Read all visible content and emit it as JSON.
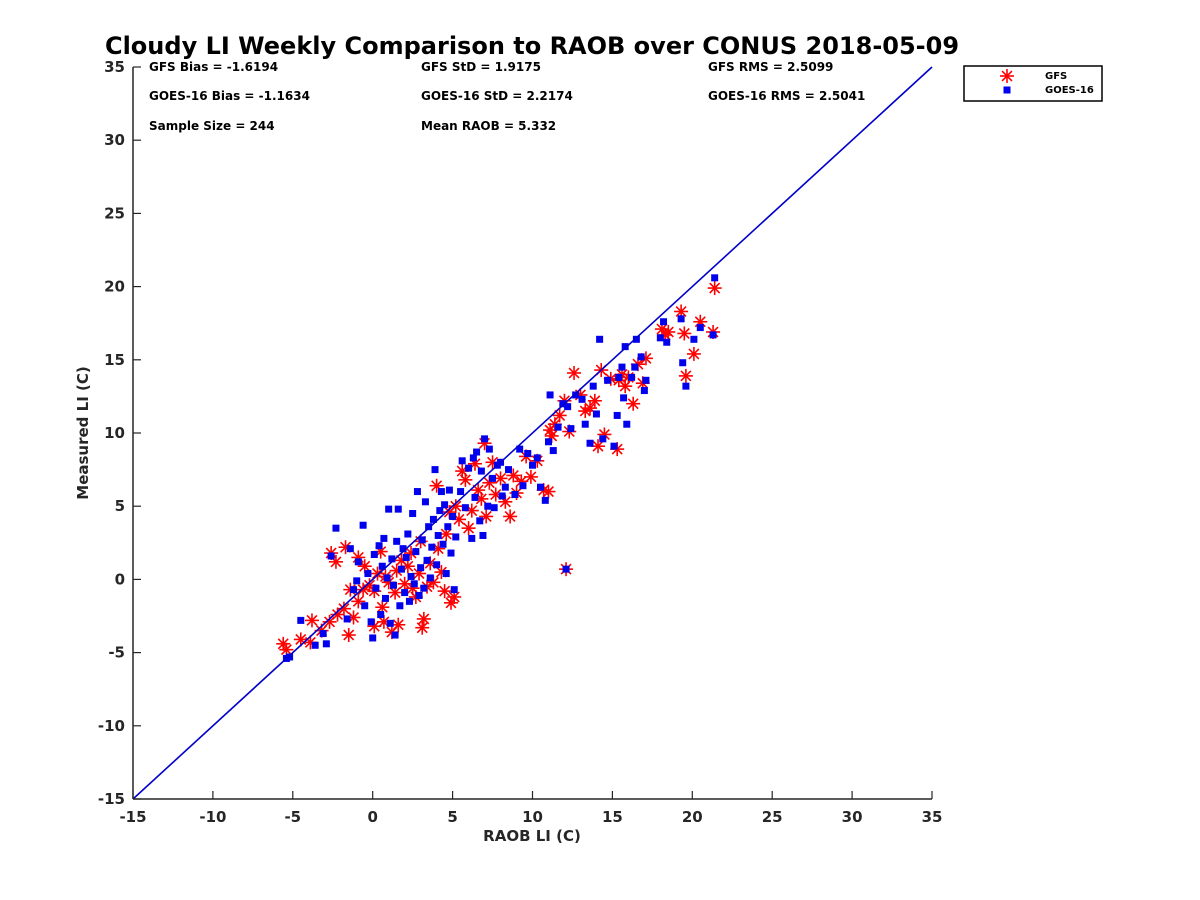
{
  "chart_data": {
    "type": "scatter",
    "title": "Cloudy LI Weekly Comparison to RAOB over CONUS 2018-05-09",
    "xlabel": "RAOB LI (C)",
    "ylabel": "Measured LI (C)",
    "xlim": [
      -15,
      35
    ],
    "ylim": [
      -15,
      35
    ],
    "xticks": [
      -15,
      -10,
      -5,
      0,
      5,
      10,
      15,
      20,
      25,
      30,
      35
    ],
    "yticks": [
      -15,
      -10,
      -5,
      0,
      5,
      10,
      15,
      20,
      25,
      30,
      35
    ],
    "grid": false,
    "legend_position": "top-right-outside",
    "reference_line": {
      "from": [
        -15,
        -15
      ],
      "to": [
        35,
        35
      ],
      "color": "#0000cc"
    },
    "stats": [
      {
        "label": "GFS Bias = -1.6194"
      },
      {
        "label": "GFS StD = 1.9175"
      },
      {
        "label": "GFS RMS = 2.5099"
      },
      {
        "label": "GOES-16 Bias = -1.1634"
      },
      {
        "label": "GOES-16 StD = 2.2174"
      },
      {
        "label": "GOES-16 RMS = 2.5041"
      },
      {
        "label": "Sample Size = 244"
      },
      {
        "label": "Mean RAOB = 5.332"
      }
    ],
    "series": [
      {
        "name": "GFS",
        "marker": "asterisk",
        "color": "#ff0000",
        "points": [
          [
            -5.6,
            -4.4
          ],
          [
            -5.4,
            -4.8
          ],
          [
            -4.5,
            -4.1
          ],
          [
            -3.9,
            -4.3
          ],
          [
            -3.8,
            -2.8
          ],
          [
            -3.2,
            -3.5
          ],
          [
            -2.7,
            -2.9
          ],
          [
            -2.2,
            -2.4
          ],
          [
            -1.8,
            -2.0
          ],
          [
            -1.5,
            -3.8
          ],
          [
            -1.2,
            -2.6
          ],
          [
            -0.9,
            -1.5
          ],
          [
            -0.6,
            -0.7
          ],
          [
            -1.4,
            -0.7
          ],
          [
            -2.6,
            1.8
          ],
          [
            -2.3,
            1.2
          ],
          [
            -1.7,
            2.2
          ],
          [
            -0.9,
            1.5
          ],
          [
            -0.5,
            0.9
          ],
          [
            -0.2,
            -0.4
          ],
          [
            0.1,
            -3.2
          ],
          [
            0.1,
            -0.8
          ],
          [
            0.3,
            0.4
          ],
          [
            0.5,
            1.9
          ],
          [
            0.6,
            -1.9
          ],
          [
            0.7,
            -2.9
          ],
          [
            0.8,
            0.2
          ],
          [
            1.0,
            -0.2
          ],
          [
            1.2,
            -3.6
          ],
          [
            1.4,
            -0.9
          ],
          [
            1.5,
            0.6
          ],
          [
            1.6,
            -3.1
          ],
          [
            1.8,
            1.3
          ],
          [
            2.0,
            -0.3
          ],
          [
            2.2,
            0.9
          ],
          [
            2.4,
            1.8
          ],
          [
            2.5,
            -0.6
          ],
          [
            2.7,
            -1.2
          ],
          [
            2.9,
            0.4
          ],
          [
            3.0,
            2.6
          ],
          [
            3.1,
            -3.3
          ],
          [
            3.2,
            -2.7
          ],
          [
            3.4,
            -0.5
          ],
          [
            3.6,
            1.1
          ],
          [
            3.8,
            -0.2
          ],
          [
            4.0,
            6.4
          ],
          [
            4.1,
            2.1
          ],
          [
            4.3,
            0.5
          ],
          [
            4.5,
            -0.8
          ],
          [
            4.6,
            3.1
          ],
          [
            4.8,
            4.6
          ],
          [
            4.9,
            -1.6
          ],
          [
            5.1,
            -1.2
          ],
          [
            5.2,
            5.0
          ],
          [
            5.4,
            4.1
          ],
          [
            5.6,
            7.4
          ],
          [
            5.8,
            6.8
          ],
          [
            6.0,
            3.5
          ],
          [
            6.2,
            4.7
          ],
          [
            6.4,
            7.9
          ],
          [
            6.6,
            6.1
          ],
          [
            6.8,
            5.5
          ],
          [
            7.0,
            9.3
          ],
          [
            7.1,
            4.3
          ],
          [
            7.3,
            6.6
          ],
          [
            7.5,
            8.0
          ],
          [
            7.7,
            5.8
          ],
          [
            8.0,
            6.9
          ],
          [
            8.3,
            5.3
          ],
          [
            8.6,
            4.3
          ],
          [
            8.8,
            7.1
          ],
          [
            9.0,
            5.9
          ],
          [
            9.3,
            6.7
          ],
          [
            9.6,
            8.4
          ],
          [
            9.9,
            7.0
          ],
          [
            10.3,
            8.1
          ],
          [
            10.7,
            6.1
          ],
          [
            11.0,
            6.0
          ],
          [
            11.1,
            10.2
          ],
          [
            11.2,
            9.8
          ],
          [
            11.4,
            10.6
          ],
          [
            11.7,
            11.2
          ],
          [
            12.0,
            12.2
          ],
          [
            12.1,
            0.7
          ],
          [
            12.3,
            10.1
          ],
          [
            12.6,
            14.1
          ],
          [
            13.0,
            12.6
          ],
          [
            13.3,
            11.5
          ],
          [
            13.6,
            11.7
          ],
          [
            13.9,
            12.2
          ],
          [
            14.1,
            9.1
          ],
          [
            14.3,
            14.3
          ],
          [
            14.5,
            9.9
          ],
          [
            14.9,
            13.7
          ],
          [
            15.3,
            8.9
          ],
          [
            15.4,
            13.6
          ],
          [
            15.6,
            14.0
          ],
          [
            15.8,
            13.2
          ],
          [
            16.0,
            13.8
          ],
          [
            16.3,
            12.0
          ],
          [
            16.6,
            14.7
          ],
          [
            16.9,
            13.4
          ],
          [
            17.1,
            15.1
          ],
          [
            18.1,
            17.1
          ],
          [
            18.3,
            16.7
          ],
          [
            18.5,
            16.9
          ],
          [
            19.3,
            18.3
          ],
          [
            19.5,
            16.8
          ],
          [
            19.6,
            13.9
          ],
          [
            20.1,
            15.4
          ],
          [
            20.5,
            17.6
          ],
          [
            21.3,
            16.9
          ],
          [
            21.4,
            19.9
          ]
        ]
      },
      {
        "name": "GOES-16",
        "marker": "square",
        "color": "#0000ee",
        "points": [
          [
            -5.4,
            -5.4
          ],
          [
            -5.2,
            -5.3
          ],
          [
            -4.5,
            -2.8
          ],
          [
            -3.6,
            -4.5
          ],
          [
            -3.1,
            -3.7
          ],
          [
            -2.9,
            -4.4
          ],
          [
            -2.6,
            1.6
          ],
          [
            -2.3,
            3.5
          ],
          [
            -1.6,
            -2.7
          ],
          [
            -1.4,
            2.1
          ],
          [
            -1.2,
            -0.7
          ],
          [
            -1.0,
            -0.1
          ],
          [
            -0.9,
            1.2
          ],
          [
            -0.6,
            3.7
          ],
          [
            -0.5,
            -1.8
          ],
          [
            -0.3,
            0.4
          ],
          [
            -0.1,
            -2.9
          ],
          [
            0.0,
            -4.0
          ],
          [
            0.1,
            1.7
          ],
          [
            0.2,
            -0.6
          ],
          [
            0.4,
            2.3
          ],
          [
            0.5,
            -2.4
          ],
          [
            0.6,
            0.9
          ],
          [
            0.7,
            2.8
          ],
          [
            0.8,
            -1.3
          ],
          [
            0.9,
            0.1
          ],
          [
            1.0,
            4.8
          ],
          [
            1.1,
            -3.0
          ],
          [
            1.2,
            1.4
          ],
          [
            1.3,
            -0.4
          ],
          [
            1.4,
            -3.8
          ],
          [
            1.5,
            2.6
          ],
          [
            1.6,
            4.8
          ],
          [
            1.7,
            -1.8
          ],
          [
            1.8,
            0.7
          ],
          [
            1.9,
            2.1
          ],
          [
            2.0,
            -0.9
          ],
          [
            2.1,
            1.5
          ],
          [
            2.2,
            3.1
          ],
          [
            2.3,
            -1.5
          ],
          [
            2.4,
            0.2
          ],
          [
            2.5,
            4.5
          ],
          [
            2.6,
            -0.3
          ],
          [
            2.7,
            1.9
          ],
          [
            2.8,
            6.0
          ],
          [
            2.9,
            -1.1
          ],
          [
            3.0,
            0.8
          ],
          [
            3.1,
            2.7
          ],
          [
            3.2,
            -0.6
          ],
          [
            3.3,
            5.3
          ],
          [
            3.4,
            1.3
          ],
          [
            3.5,
            3.6
          ],
          [
            3.6,
            0.1
          ],
          [
            3.7,
            2.2
          ],
          [
            3.8,
            4.1
          ],
          [
            3.9,
            7.5
          ],
          [
            4.0,
            1.0
          ],
          [
            4.1,
            3.0
          ],
          [
            4.2,
            4.7
          ],
          [
            4.3,
            6.0
          ],
          [
            4.4,
            2.4
          ],
          [
            4.5,
            5.1
          ],
          [
            4.6,
            0.4
          ],
          [
            4.7,
            3.6
          ],
          [
            4.8,
            6.1
          ],
          [
            4.9,
            1.8
          ],
          [
            5.0,
            4.3
          ],
          [
            5.1,
            -0.7
          ],
          [
            5.2,
            2.9
          ],
          [
            5.5,
            6.0
          ],
          [
            5.6,
            8.1
          ],
          [
            5.8,
            4.9
          ],
          [
            6.0,
            7.6
          ],
          [
            6.2,
            2.8
          ],
          [
            6.3,
            8.3
          ],
          [
            6.4,
            5.6
          ],
          [
            6.5,
            8.7
          ],
          [
            6.7,
            4.0
          ],
          [
            6.8,
            7.4
          ],
          [
            6.9,
            3.0
          ],
          [
            7.0,
            9.6
          ],
          [
            7.2,
            5.0
          ],
          [
            7.3,
            8.9
          ],
          [
            7.5,
            6.9
          ],
          [
            7.6,
            4.9
          ],
          [
            7.8,
            7.8
          ],
          [
            8.0,
            8.0
          ],
          [
            8.1,
            5.7
          ],
          [
            8.3,
            6.3
          ],
          [
            8.5,
            7.5
          ],
          [
            8.9,
            5.8
          ],
          [
            9.2,
            8.9
          ],
          [
            9.4,
            6.4
          ],
          [
            9.7,
            8.6
          ],
          [
            10.0,
            7.8
          ],
          [
            10.3,
            8.3
          ],
          [
            10.5,
            6.3
          ],
          [
            10.8,
            5.4
          ],
          [
            11.0,
            9.4
          ],
          [
            11.1,
            12.6
          ],
          [
            11.3,
            8.8
          ],
          [
            11.6,
            10.4
          ],
          [
            11.9,
            12.0
          ],
          [
            12.1,
            0.7
          ],
          [
            12.2,
            11.8
          ],
          [
            12.4,
            10.3
          ],
          [
            12.7,
            12.6
          ],
          [
            13.1,
            12.3
          ],
          [
            13.3,
            10.6
          ],
          [
            13.6,
            9.3
          ],
          [
            13.8,
            13.2
          ],
          [
            14.0,
            11.3
          ],
          [
            14.2,
            16.4
          ],
          [
            14.4,
            9.6
          ],
          [
            14.7,
            13.6
          ],
          [
            15.1,
            9.1
          ],
          [
            15.3,
            11.2
          ],
          [
            15.4,
            13.8
          ],
          [
            15.6,
            14.5
          ],
          [
            15.7,
            12.4
          ],
          [
            15.8,
            15.9
          ],
          [
            15.9,
            10.6
          ],
          [
            16.2,
            13.8
          ],
          [
            16.4,
            14.5
          ],
          [
            16.5,
            16.4
          ],
          [
            16.8,
            15.2
          ],
          [
            17.0,
            12.9
          ],
          [
            17.1,
            13.6
          ],
          [
            18.0,
            16.5
          ],
          [
            18.2,
            17.6
          ],
          [
            18.4,
            16.2
          ],
          [
            19.3,
            17.8
          ],
          [
            19.4,
            14.8
          ],
          [
            19.6,
            13.2
          ],
          [
            20.1,
            16.4
          ],
          [
            20.5,
            17.2
          ],
          [
            21.3,
            16.7
          ],
          [
            21.4,
            20.6
          ]
        ]
      }
    ]
  }
}
